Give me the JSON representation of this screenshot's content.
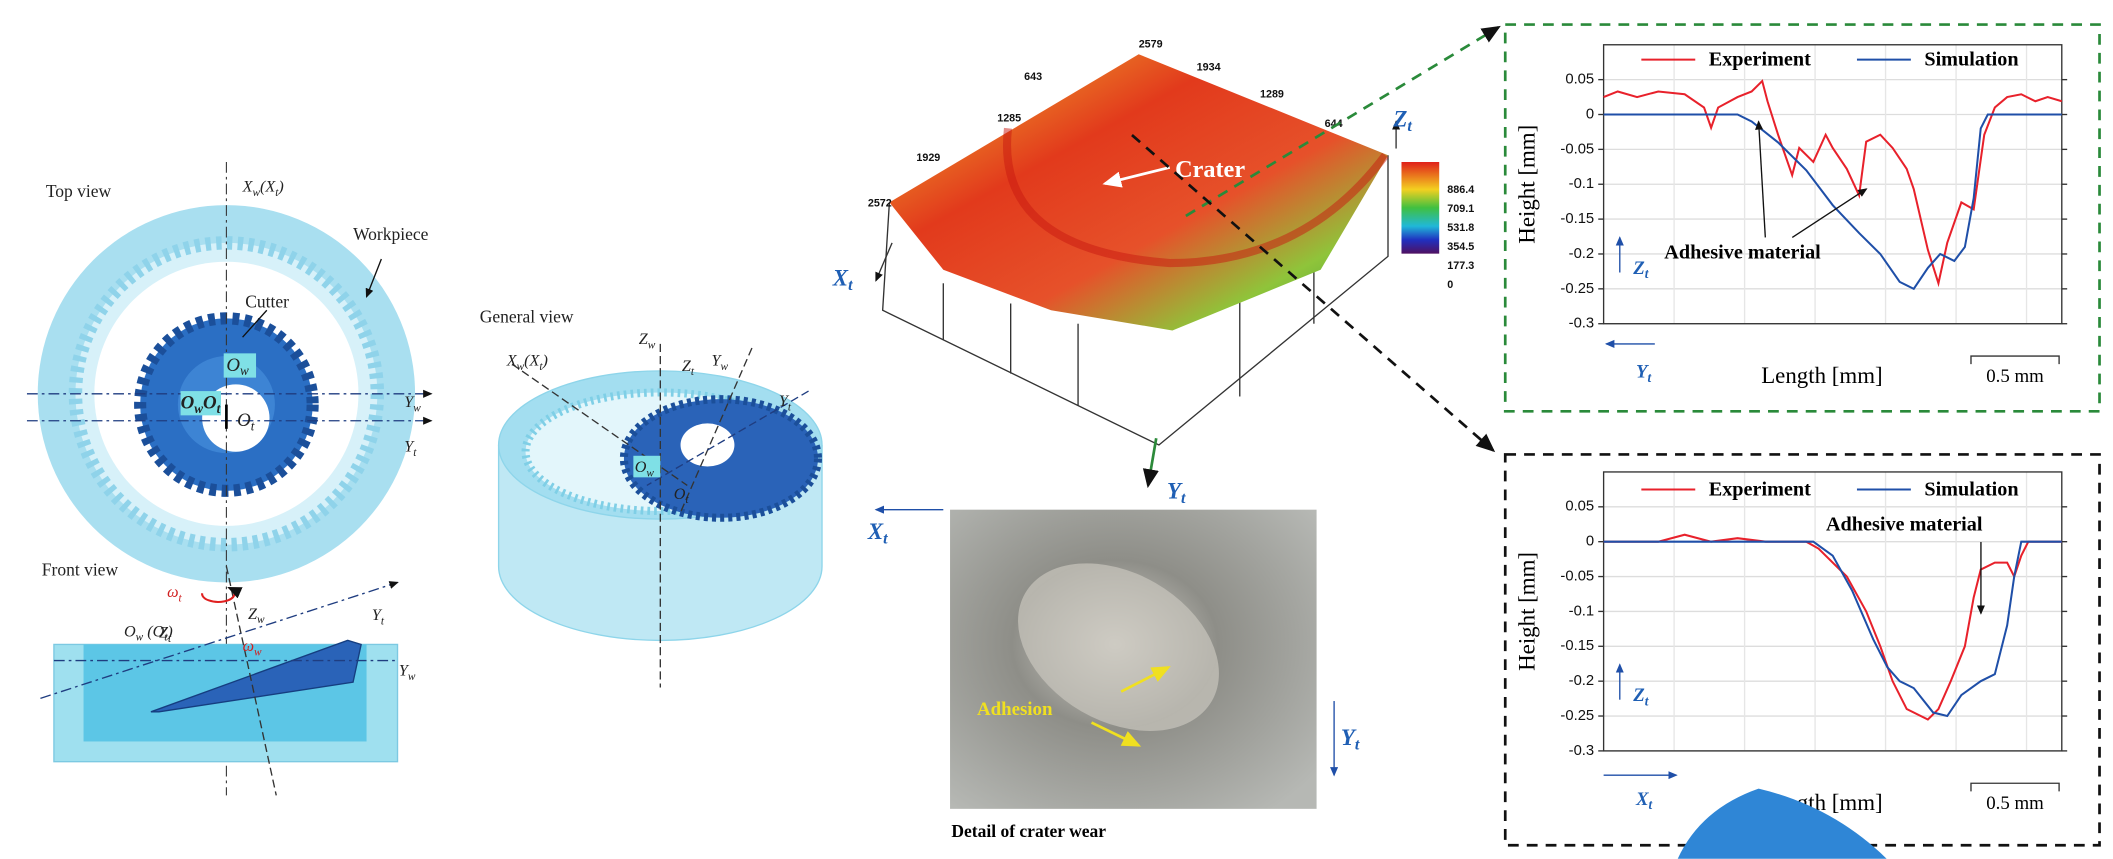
{
  "diagram": {
    "top_view": {
      "title": "Top view",
      "workpiece": "Workpiece",
      "cutter": "Cutter",
      "x_axis": [
        "X",
        "w",
        "(X",
        "t",
        ")"
      ],
      "o_w": [
        "O",
        "w"
      ],
      "o_w_o_t": [
        "O",
        "w",
        "O",
        "t"
      ],
      "o_t": [
        "O",
        "t"
      ],
      "y_w": [
        "Y",
        "w"
      ],
      "y_t": [
        "Y",
        "t"
      ]
    },
    "front_view": {
      "title": "Front view",
      "omega_t": [
        "ω",
        "t"
      ],
      "z_t": [
        "Z",
        "t"
      ],
      "z_w": [
        "Z",
        "w"
      ],
      "omega_w": [
        "ω",
        "w"
      ],
      "origin": [
        "O",
        "w",
        " (O",
        "t",
        ")"
      ],
      "y_t": [
        "Y",
        "t"
      ],
      "y_w": [
        "Y",
        "w"
      ]
    },
    "general_view": {
      "title": "General view",
      "x_axis": [
        "X",
        "w",
        "(X",
        "t",
        ")"
      ],
      "z_w": [
        "Z",
        "w"
      ],
      "z_t": [
        "Z",
        "t"
      ],
      "y_w": [
        "Y",
        "w"
      ],
      "y_t": [
        "Y",
        "t"
      ],
      "o_w": [
        "O",
        "w"
      ],
      "o_t": [
        "O",
        "t"
      ]
    },
    "surface": {
      "label": "Crater",
      "x_axis": [
        "X",
        "t"
      ],
      "y_axis": [
        "Y",
        "t"
      ],
      "z_axis": [
        "Z",
        "t"
      ],
      "axis_numbers": [
        "2579",
        "1934",
        "1289",
        "644",
        "643",
        "1285",
        "1929",
        "2572"
      ],
      "colorbar": [
        "886.4",
        "709.1",
        "531.8",
        "354.5",
        "177.3",
        "0"
      ]
    },
    "photo": {
      "label": "Adhesion",
      "x_axis": [
        "X",
        "t"
      ],
      "y_axis": [
        "Y",
        "t"
      ],
      "caption": "Detail of crater wear"
    }
  },
  "chart_data": [
    {
      "type": "line",
      "x_label": "Length [mm]",
      "y_label": "Height [mm]",
      "annotation": "Adhesive material",
      "scale_bar": {
        "value": 0.5,
        "label": "0.5 mm"
      },
      "axis_z": [
        "Z",
        "t"
      ],
      "axis_h": [
        "Y",
        "t"
      ],
      "xlim": [
        0,
        2.6
      ],
      "ylim": [
        -0.3,
        0.1
      ],
      "yticks": [
        0.05,
        0,
        -0.05,
        -0.1,
        -0.15,
        -0.2,
        -0.25,
        -0.3
      ],
      "grid": true,
      "series": [
        {
          "name": "Experiment",
          "color": "#e8212b",
          "x": [
            0,
            0.08,
            0.19,
            0.31,
            0.46,
            0.57,
            0.61,
            0.65,
            0.76,
            0.84,
            0.9,
            0.93,
            0.99,
            1.07,
            1.11,
            1.19,
            1.26,
            1.3,
            1.38,
            1.45,
            1.49,
            1.57,
            1.64,
            1.72,
            1.76,
            1.84,
            1.9,
            1.95,
            2.03,
            2.1,
            2.16,
            2.22,
            2.29,
            2.37,
            2.45,
            2.52,
            2.6
          ],
          "values": [
            0.025,
            0.033,
            0.025,
            0.033,
            0.029,
            0.01,
            -0.019,
            0.01,
            0.025,
            0.033,
            0.048,
            0.019,
            -0.029,
            -0.087,
            -0.048,
            -0.068,
            -0.029,
            -0.048,
            -0.078,
            -0.116,
            -0.039,
            -0.029,
            -0.048,
            -0.078,
            -0.107,
            -0.194,
            -0.242,
            -0.184,
            -0.126,
            -0.136,
            -0.029,
            0.01,
            0.025,
            0.029,
            0.019,
            0.025,
            0.019
          ]
        },
        {
          "name": "Simulation",
          "color": "#1f4fa8",
          "x": [
            0,
            0.76,
            0.84,
            0.99,
            1.15,
            1.3,
            1.45,
            1.57,
            1.68,
            1.76,
            1.84,
            1.91,
            1.99,
            2.05,
            2.1,
            2.14,
            2.18,
            2.6
          ],
          "values": [
            0,
            0,
            -0.01,
            -0.04,
            -0.08,
            -0.13,
            -0.17,
            -0.2,
            -0.24,
            -0.25,
            -0.22,
            -0.2,
            -0.21,
            -0.19,
            -0.12,
            -0.02,
            0,
            0
          ]
        }
      ]
    },
    {
      "type": "line",
      "x_label": "Length [mm]",
      "y_label": "Height [mm]",
      "annotation": "Adhesive material",
      "scale_bar": {
        "value": 0.5,
        "label": "0.5 mm"
      },
      "axis_z": [
        "Z",
        "t"
      ],
      "axis_h": [
        "X",
        "t"
      ],
      "xlim": [
        0,
        2.6
      ],
      "ylim": [
        -0.3,
        0.1
      ],
      "yticks": [
        0.05,
        0,
        -0.05,
        -0.1,
        -0.15,
        -0.2,
        -0.25,
        -0.3
      ],
      "grid": true,
      "series": [
        {
          "name": "Experiment",
          "color": "#e8212b",
          "x": [
            0,
            0.31,
            0.46,
            0.61,
            0.76,
            0.92,
            1.15,
            1.22,
            1.38,
            1.49,
            1.57,
            1.64,
            1.72,
            1.84,
            1.9,
            1.97,
            2.05,
            2.1,
            2.14,
            2.22,
            2.29,
            2.33,
            2.37,
            2.41,
            2.6
          ],
          "values": [
            0,
            0,
            0.01,
            0,
            0.005,
            0,
            0,
            -0.01,
            -0.05,
            -0.1,
            -0.15,
            -0.2,
            -0.24,
            -0.255,
            -0.24,
            -0.2,
            -0.15,
            -0.08,
            -0.04,
            -0.03,
            -0.03,
            -0.05,
            -0.02,
            0,
            0
          ]
        },
        {
          "name": "Simulation",
          "color": "#1f4fa8",
          "x": [
            0,
            1.19,
            1.3,
            1.41,
            1.53,
            1.61,
            1.68,
            1.76,
            1.87,
            1.95,
            2.03,
            2.14,
            2.22,
            2.29,
            2.33,
            2.37,
            2.6
          ],
          "values": [
            0,
            0,
            -0.02,
            -0.07,
            -0.14,
            -0.18,
            -0.2,
            -0.21,
            -0.245,
            -0.25,
            -0.22,
            -0.2,
            -0.19,
            -0.12,
            -0.05,
            0,
            0
          ]
        }
      ]
    }
  ]
}
